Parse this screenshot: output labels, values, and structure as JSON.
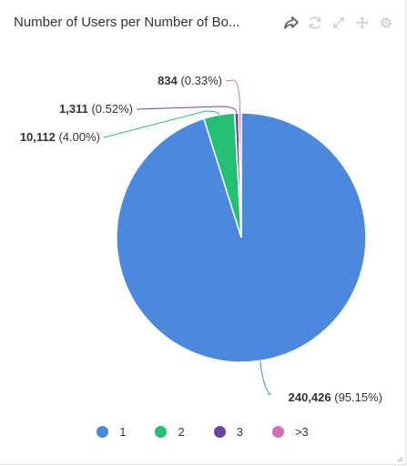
{
  "widget": {
    "title": "Number of Users per Number of Bo..."
  },
  "toolbar": {
    "icons": [
      "share-icon",
      "refresh-icon",
      "expand-icon",
      "move-icon",
      "settings-icon"
    ]
  },
  "chart_data": {
    "type": "pie",
    "title": "Number of Users per Number of Bo...",
    "categories": [
      "1",
      "2",
      "3",
      ">3"
    ],
    "values": [
      240426,
      10112,
      1311,
      834
    ],
    "value_labels": [
      "240,426",
      "10,112",
      "1,311",
      "834"
    ],
    "percent_labels": [
      "(95.15%)",
      "(4.00%)",
      "(0.52%)",
      "(0.33%)"
    ],
    "colors": [
      "#4a89dc",
      "#23bf73",
      "#6a45a0",
      "#d56fb3"
    ],
    "legend_position": "bottom",
    "start_angle": "top, clockwise"
  }
}
